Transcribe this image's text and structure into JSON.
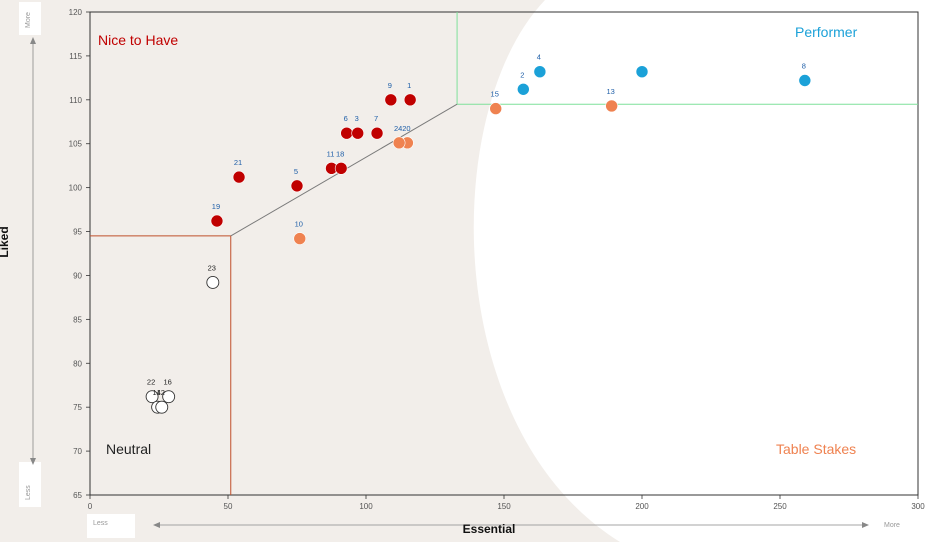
{
  "chart_data": {
    "type": "scatter",
    "xlabel": "Essential",
    "ylabel": "Liked",
    "xlim": [
      0,
      300
    ],
    "ylim": [
      65,
      120
    ],
    "x_ticks": [
      0,
      50,
      100,
      150,
      200,
      250,
      300
    ],
    "y_ticks": [
      65,
      70,
      75,
      80,
      85,
      90,
      95,
      100,
      105,
      110,
      115,
      120
    ],
    "x_axis_tags": {
      "low": "Less",
      "high": "More"
    },
    "y_axis_tags": {
      "low": "Less",
      "high": "More"
    },
    "grid": false,
    "quadrants": {
      "nice_to_have": {
        "label": "Nice to Have",
        "color": "#c00000"
      },
      "performer": {
        "label": "Performer",
        "color": "#1ba1d8"
      },
      "neutral": {
        "label": "Neutral",
        "color": "#222222"
      },
      "table_stakes": {
        "label": "Table Stakes",
        "color": "#ef8250"
      }
    },
    "divider_lines": [
      {
        "color": "#c0502a",
        "points": [
          [
            0,
            94.5
          ],
          [
            51,
            94.5
          ],
          [
            51,
            65
          ]
        ]
      },
      {
        "color": "#7fe09a",
        "points": [
          [
            133,
            120
          ],
          [
            133,
            109.5
          ],
          [
            300,
            109.5
          ]
        ]
      },
      {
        "color": "#7a7a7a",
        "points": [
          [
            51,
            94.5
          ],
          [
            133,
            109.5
          ]
        ]
      }
    ],
    "points": [
      {
        "id": "1",
        "x": 116,
        "y": 110.0,
        "category": "nice_to_have"
      },
      {
        "id": "9",
        "x": 109,
        "y": 110.0,
        "category": "nice_to_have"
      },
      {
        "id": "6",
        "x": 93,
        "y": 106.2,
        "category": "nice_to_have"
      },
      {
        "id": "3",
        "x": 97,
        "y": 106.2,
        "category": "nice_to_have"
      },
      {
        "id": "7",
        "x": 104,
        "y": 106.2,
        "category": "nice_to_have"
      },
      {
        "id": "11",
        "x": 87.5,
        "y": 102.2,
        "category": "nice_to_have"
      },
      {
        "id": "18",
        "x": 91,
        "y": 102.2,
        "category": "nice_to_have"
      },
      {
        "id": "21",
        "x": 54,
        "y": 101.2,
        "category": "nice_to_have"
      },
      {
        "id": "5",
        "x": 75,
        "y": 100.2,
        "category": "nice_to_have"
      },
      {
        "id": "19",
        "x": 46,
        "y": 96.2,
        "category": "nice_to_have"
      },
      {
        "id": "4",
        "x": 163,
        "y": 113.2,
        "category": "performer"
      },
      {
        "id": "2",
        "x": 157,
        "y": 111.2,
        "category": "performer"
      },
      {
        "id": "",
        "x": 200,
        "y": 113.2,
        "category": "performer"
      },
      {
        "id": "8",
        "x": 259,
        "y": 112.2,
        "category": "performer"
      },
      {
        "id": "15",
        "x": 147,
        "y": 109.0,
        "category": "table_stakes"
      },
      {
        "id": "13",
        "x": 189,
        "y": 109.3,
        "category": "table_stakes"
      },
      {
        "id": "20",
        "x": 115,
        "y": 105.1,
        "category": "table_stakes"
      },
      {
        "id": "24",
        "x": 112,
        "y": 105.1,
        "category": "table_stakes"
      },
      {
        "id": "10",
        "x": 76,
        "y": 94.2,
        "category": "table_stakes"
      },
      {
        "id": "23",
        "x": 44.5,
        "y": 89.2,
        "category": "neutral"
      },
      {
        "id": "22",
        "x": 22.5,
        "y": 76.2,
        "category": "neutral"
      },
      {
        "id": "16",
        "x": 28.5,
        "y": 76.2,
        "category": "neutral"
      },
      {
        "id": "14",
        "x": 24.5,
        "y": 75.0,
        "category": "neutral"
      },
      {
        "id": "12",
        "x": 26,
        "y": 75.0,
        "category": "neutral"
      }
    ]
  }
}
